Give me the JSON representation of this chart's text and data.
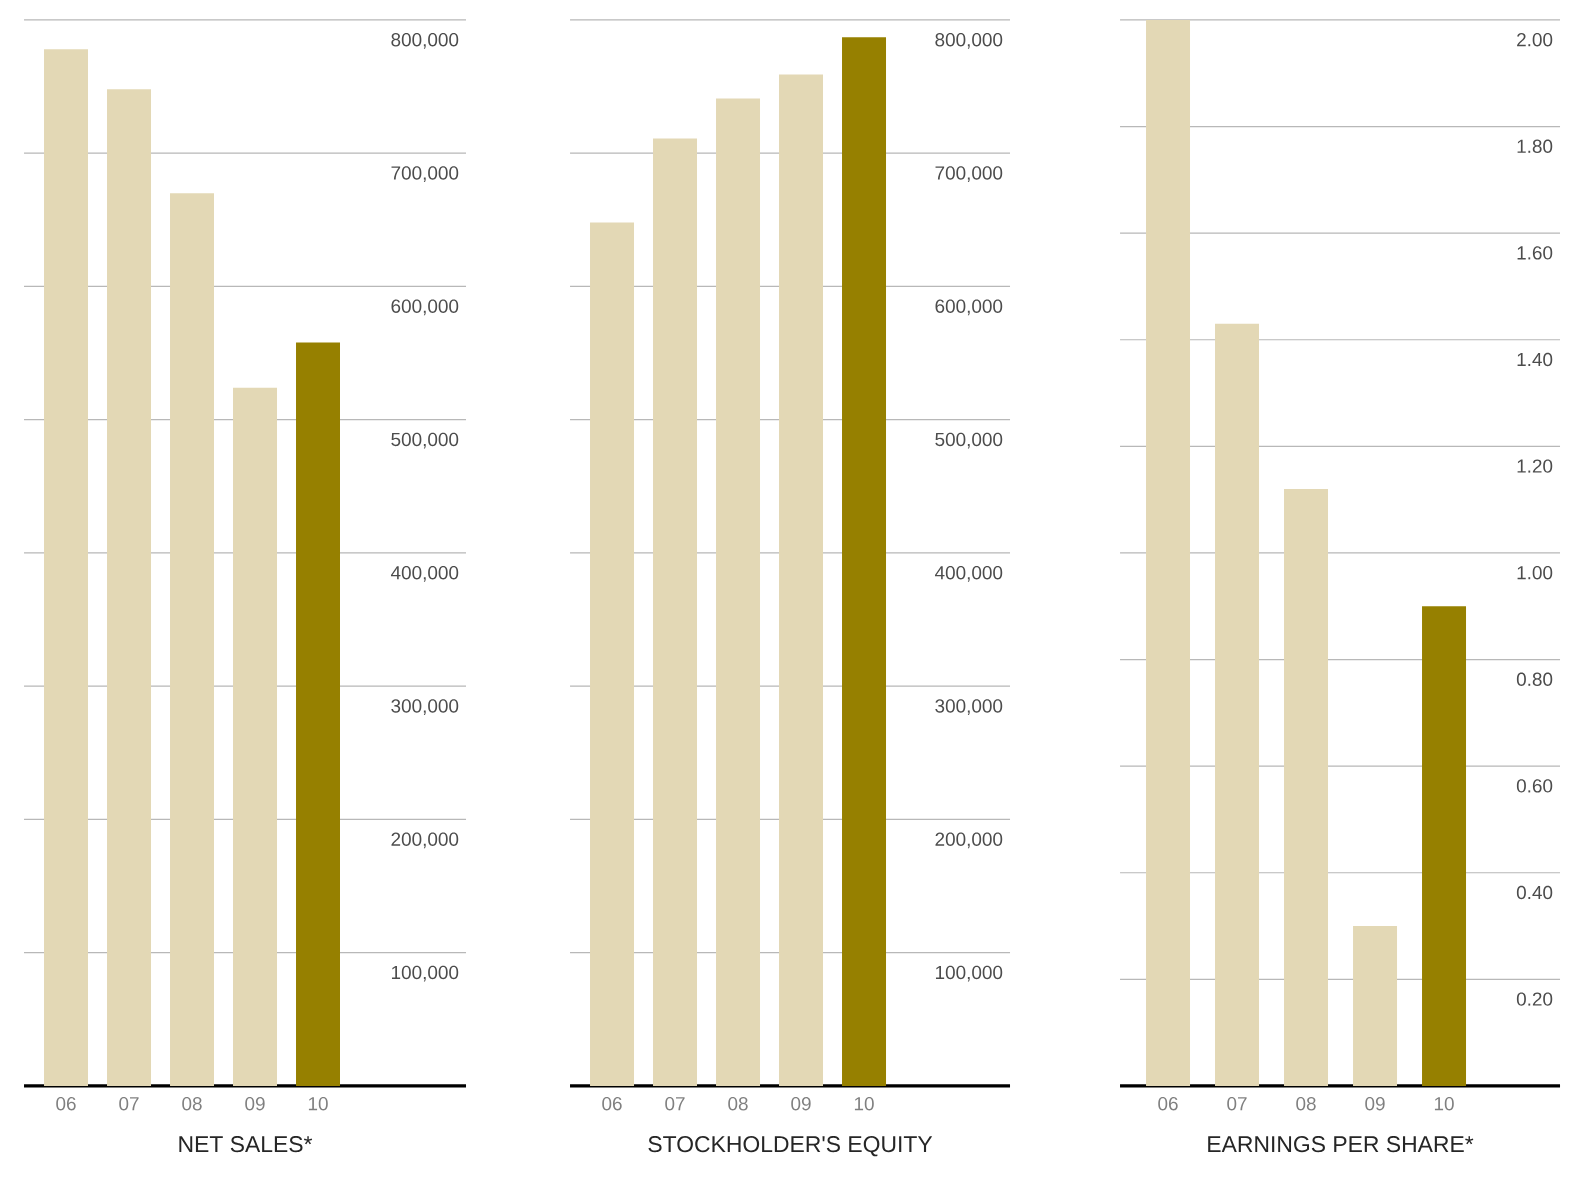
{
  "chart_data": [
    {
      "type": "bar",
      "xlabel": "NET SALES*",
      "categories": [
        "06",
        "07",
        "08",
        "09",
        "10"
      ],
      "values": [
        778000,
        748000,
        670000,
        524000,
        558000
      ],
      "colors": [
        "#e3d8b5",
        "#e3d8b5",
        "#e3d8b5",
        "#e3d8b5",
        "#968000"
      ],
      "ylim": [
        0,
        800000
      ],
      "yticks": [
        {
          "value": 100000,
          "label": "100,000"
        },
        {
          "value": 200000,
          "label": "200,000"
        },
        {
          "value": 300000,
          "label": "300,000"
        },
        {
          "value": 400000,
          "label": "400,000"
        },
        {
          "value": 500000,
          "label": "500,000"
        },
        {
          "value": 600000,
          "label": "600,000"
        },
        {
          "value": 700000,
          "label": "700,000"
        },
        {
          "value": 800000,
          "label": "800,000"
        }
      ],
      "grid": "y"
    },
    {
      "type": "bar",
      "xlabel": "STOCKHOLDER'S EQUITY",
      "categories": [
        "06",
        "07",
        "08",
        "09",
        "10"
      ],
      "values": [
        648000,
        711000,
        741000,
        759000,
        787000
      ],
      "colors": [
        "#e3d8b5",
        "#e3d8b5",
        "#e3d8b5",
        "#e3d8b5",
        "#968000"
      ],
      "ylim": [
        0,
        800000
      ],
      "yticks": [
        {
          "value": 100000,
          "label": "100,000"
        },
        {
          "value": 200000,
          "label": "200,000"
        },
        {
          "value": 300000,
          "label": "300,000"
        },
        {
          "value": 400000,
          "label": "400,000"
        },
        {
          "value": 500000,
          "label": "500,000"
        },
        {
          "value": 600000,
          "label": "600,000"
        },
        {
          "value": 700000,
          "label": "700,000"
        },
        {
          "value": 800000,
          "label": "800,000"
        }
      ],
      "grid": "y"
    },
    {
      "type": "bar",
      "xlabel": "EARNINGS PER SHARE*",
      "categories": [
        "06",
        "07",
        "08",
        "09",
        "10"
      ],
      "values": [
        2.0,
        1.43,
        1.12,
        0.3,
        0.9
      ],
      "colors": [
        "#e3d8b5",
        "#e3d8b5",
        "#e3d8b5",
        "#e3d8b5",
        "#968000"
      ],
      "ylim": [
        0,
        2.0
      ],
      "yticks": [
        {
          "value": 0.2,
          "label": "0.20"
        },
        {
          "value": 0.4,
          "label": "0.40"
        },
        {
          "value": 0.6,
          "label": "0.60"
        },
        {
          "value": 0.8,
          "label": "0.80"
        },
        {
          "value": 1.0,
          "label": "1.00"
        },
        {
          "value": 1.2,
          "label": "1.20"
        },
        {
          "value": 1.4,
          "label": "1.40"
        },
        {
          "value": 1.6,
          "label": "1.60"
        },
        {
          "value": 1.8,
          "label": "1.80"
        },
        {
          "value": 2.0,
          "label": "2.00"
        }
      ],
      "grid": "y"
    }
  ]
}
